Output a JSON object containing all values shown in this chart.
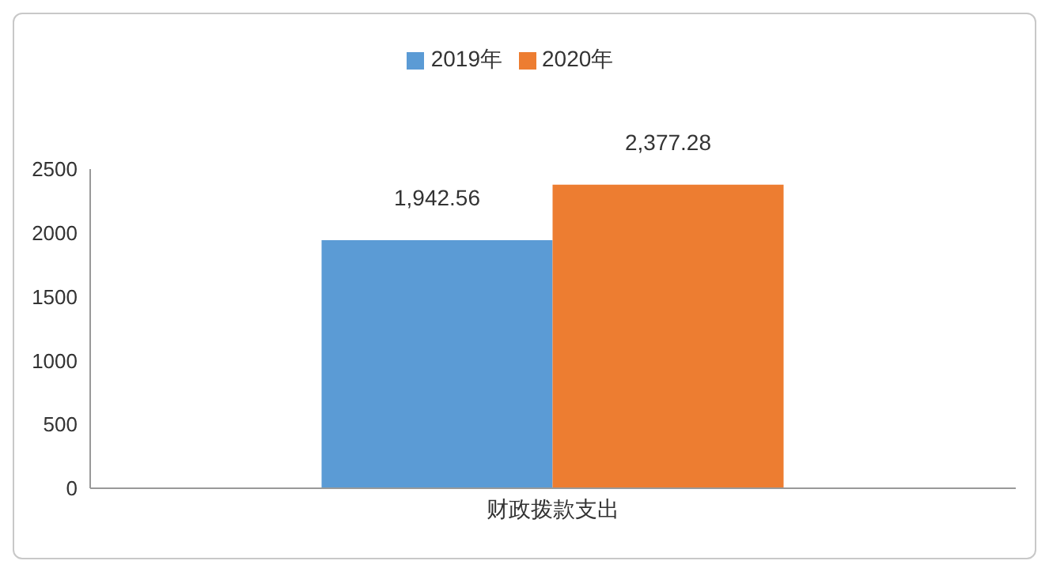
{
  "chart_data": {
    "type": "bar",
    "categories": [
      "财政拨款支出"
    ],
    "series": [
      {
        "name": "2019年",
        "color": "#5b9bd5",
        "values": [
          1942.56
        ],
        "value_labels": [
          "1,942.56"
        ]
      },
      {
        "name": "2020年",
        "color": "#ed7d31",
        "values": [
          2377.28
        ],
        "value_labels": [
          "2,377.28"
        ]
      }
    ],
    "ylim": [
      0,
      2500
    ],
    "yticks": [
      0,
      500,
      1000,
      1500,
      2000,
      2500
    ],
    "grid": false,
    "legend": "top"
  }
}
